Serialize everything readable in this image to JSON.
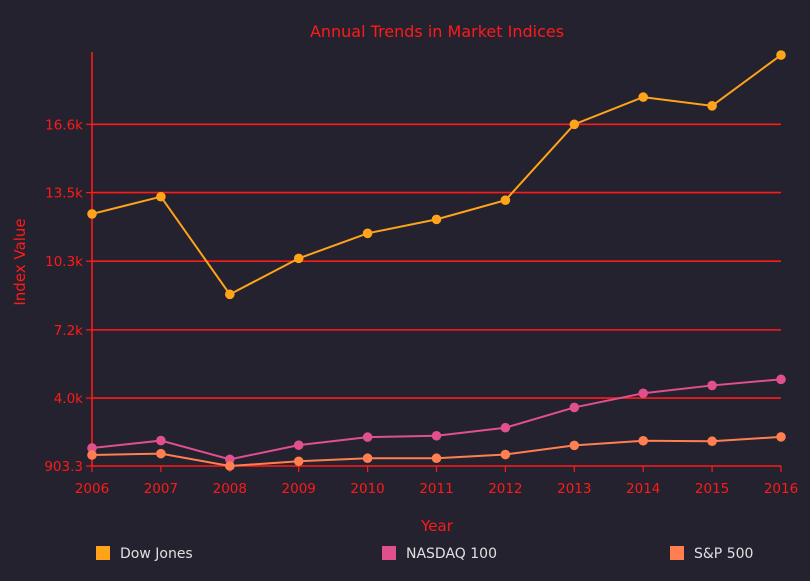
{
  "chart_data": {
    "type": "line",
    "title": "Annual Trends in Market Indices",
    "xlabel": "Year",
    "ylabel": "Index Value",
    "x": [
      "2006",
      "2007",
      "2008",
      "2009",
      "2010",
      "2011",
      "2012",
      "2013",
      "2014",
      "2015",
      "2016"
    ],
    "yticks": [
      "903.3",
      "4.0k",
      "7.2k",
      "10.3k",
      "13.5k",
      "16.6k"
    ],
    "ytick_values": [
      903.3,
      4020,
      7150,
      10300,
      13450,
      16580
    ],
    "ylim": [
      903.3,
      19900
    ],
    "grid": true,
    "legend_position": "bottom",
    "series": [
      {
        "name": "Dow Jones",
        "color": "#ffa31a",
        "values": [
          12470,
          13260,
          8780,
          10430,
          11580,
          12220,
          13100,
          16580,
          17830,
          17430,
          19760
        ]
      },
      {
        "name": "NASDAQ 100",
        "color": "#e0508c",
        "values": [
          1730,
          2070,
          1210,
          1860,
          2230,
          2290,
          2660,
          3590,
          4240,
          4600,
          4880
        ]
      },
      {
        "name": "S&P 500",
        "color": "#ff7f50",
        "values": [
          1410,
          1470,
          903.3,
          1120,
          1260,
          1260,
          1430,
          1850,
          2060,
          2040,
          2240
        ]
      }
    ]
  }
}
